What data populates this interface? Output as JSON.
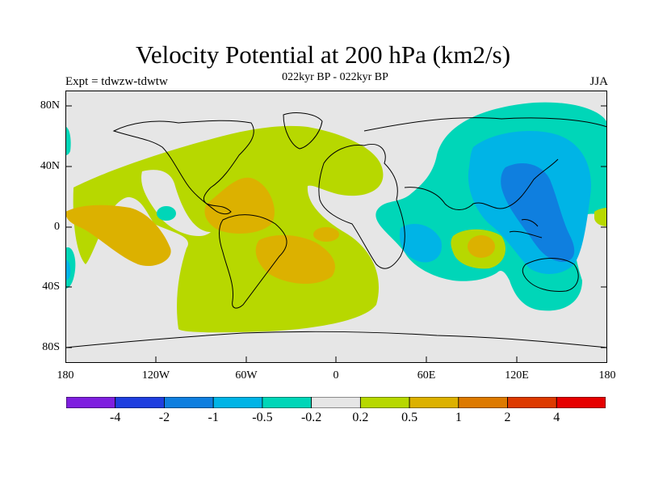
{
  "header": {
    "title": "Velocity Potential at 200 hPa (km2/s)",
    "subtitle": "022kyr BP - 022kyr BP",
    "left_label": "Expt = tdwzw-tdwtw",
    "right_label": "JJA"
  },
  "axes": {
    "y_ticks": [
      "80N",
      "40N",
      "0",
      "40S",
      "80S"
    ],
    "x_ticks": [
      "180",
      "120W",
      "60W",
      "0",
      "60E",
      "120E",
      "180"
    ]
  },
  "legend": {
    "labels": [
      "-4",
      "-2",
      "-1",
      "-0.5",
      "-0.2",
      "0.2",
      "0.5",
      "1",
      "2",
      "4"
    ],
    "colors": [
      "#7f1fdf",
      "#1f3fdf",
      "#0f7fdf",
      "#00b4e6",
      "#00d6b8",
      "#e6e6e6",
      "#b7d800",
      "#dcb100",
      "#dd7a00",
      "#dd3a00",
      "#e60000"
    ]
  },
  "palette": {
    "background": "#e6e6e6",
    "positive_light": "#b7d800",
    "positive_mid": "#dcb100",
    "negative_light": "#00d6b8",
    "negative_mid": "#00b4e6",
    "negative_strong": "#0f7fdf"
  }
}
